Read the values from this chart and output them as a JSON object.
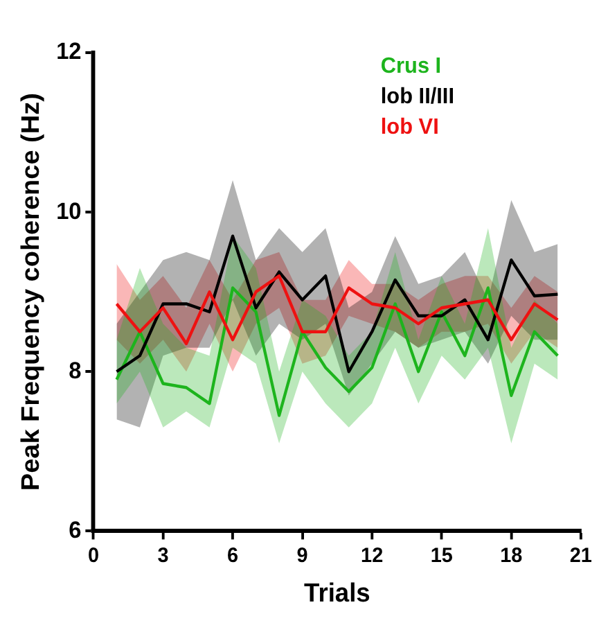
{
  "chart_data": {
    "type": "line",
    "xlabel": "Trials",
    "ylabel": "Peak Frequency coherence (Hz)",
    "x": [
      1,
      2,
      3,
      4,
      5,
      6,
      7,
      8,
      9,
      10,
      11,
      12,
      13,
      14,
      15,
      16,
      17,
      18,
      19,
      20
    ],
    "xlim": [
      0,
      21
    ],
    "xticks": [
      0,
      3,
      6,
      9,
      12,
      15,
      18,
      21
    ],
    "ylim": [
      6,
      12
    ],
    "yticks": [
      6,
      8,
      10,
      12
    ],
    "grid": false,
    "legend": "top right",
    "marker": "none",
    "line_style": "solid",
    "series": [
      {
        "name": "Crus I",
        "color": "#1db41d",
        "values": [
          7.9,
          8.5,
          7.85,
          7.8,
          7.6,
          9.05,
          8.75,
          7.45,
          8.5,
          8.05,
          7.75,
          8.05,
          8.85,
          8.0,
          8.75,
          8.2,
          9.05,
          7.7,
          8.5,
          8.2
        ],
        "lower": [
          7.6,
          8.0,
          7.3,
          7.5,
          7.3,
          8.3,
          8.1,
          7.1,
          8.0,
          7.6,
          7.3,
          7.6,
          8.3,
          7.6,
          8.2,
          7.9,
          8.3,
          7.1,
          8.1,
          7.9
        ],
        "upper": [
          8.4,
          9.3,
          8.6,
          8.3,
          8.2,
          9.7,
          9.3,
          8.0,
          8.9,
          8.7,
          8.2,
          8.5,
          9.5,
          8.4,
          9.2,
          8.6,
          9.8,
          8.3,
          8.9,
          8.6
        ]
      },
      {
        "name": "lob II/III",
        "color": "#000000",
        "values": [
          8.0,
          8.2,
          8.85,
          8.85,
          8.75,
          9.7,
          8.8,
          9.25,
          8.9,
          9.2,
          8.0,
          8.5,
          9.15,
          8.7,
          8.7,
          8.9,
          8.4,
          9.4,
          8.95,
          8.97
        ],
        "lower": [
          7.4,
          7.3,
          8.2,
          8.3,
          8.3,
          8.9,
          8.2,
          8.6,
          8.4,
          8.6,
          7.7,
          8.1,
          8.5,
          8.3,
          8.4,
          8.5,
          8.1,
          8.7,
          8.4,
          8.4
        ],
        "upper": [
          8.6,
          9.0,
          9.4,
          9.5,
          9.4,
          10.4,
          9.4,
          9.8,
          9.5,
          9.8,
          8.8,
          9.0,
          9.7,
          9.1,
          9.2,
          9.5,
          8.9,
          10.15,
          9.5,
          9.6
        ]
      },
      {
        "name": "lob VI",
        "color": "#ee1111",
        "values": [
          8.85,
          8.5,
          8.8,
          8.35,
          9.0,
          8.4,
          9.0,
          9.2,
          8.5,
          8.5,
          9.05,
          8.85,
          8.8,
          8.6,
          8.8,
          8.85,
          8.9,
          8.4,
          8.85,
          8.65
        ],
        "lower": [
          8.4,
          8.1,
          8.4,
          8.0,
          8.6,
          8.0,
          8.6,
          8.8,
          8.1,
          8.2,
          8.7,
          8.6,
          8.5,
          8.3,
          8.5,
          8.5,
          8.6,
          8.1,
          8.5,
          8.3
        ],
        "upper": [
          9.35,
          8.9,
          9.2,
          8.8,
          9.4,
          8.9,
          9.4,
          9.5,
          8.9,
          8.9,
          9.4,
          9.1,
          9.1,
          8.9,
          9.1,
          9.2,
          9.2,
          8.8,
          9.2,
          9.0
        ]
      }
    ]
  }
}
